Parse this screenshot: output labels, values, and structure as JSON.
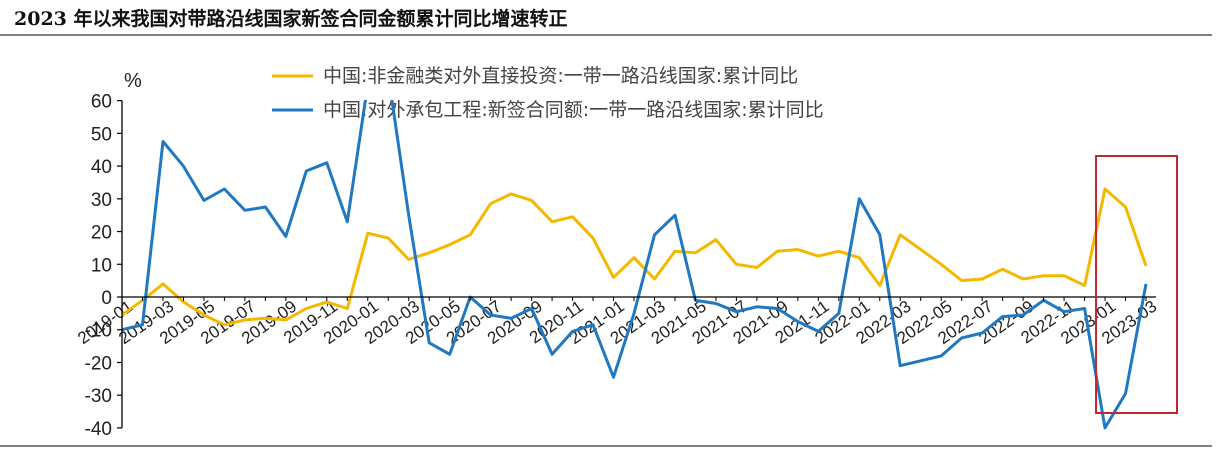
{
  "header": {
    "title": "2023 年以来我国对带路沿线国家新签合同金额累计同比增速转正"
  },
  "colors": {
    "series1": "#F5B800",
    "series2": "#1F78C1",
    "highlight": "#C0282D",
    "axis": "#000000"
  },
  "chart_data": {
    "type": "line",
    "title": "2023 年以来我国对带路沿线国家新签合同金额累计同比增速转正",
    "ylabel": "%",
    "ylim": [
      -40,
      60
    ],
    "yticks": [
      60,
      50,
      40,
      30,
      20,
      10,
      0,
      -10,
      -20,
      -30,
      -40
    ],
    "grid": false,
    "legend_position": "top",
    "x": [
      "2019-01",
      "2019-02",
      "2019-03",
      "2019-04",
      "2019-05",
      "2019-06",
      "2019-07",
      "2019-08",
      "2019-09",
      "2019-10",
      "2019-11",
      "2019-12",
      "2020-01",
      "2020-02",
      "2020-03",
      "2020-04",
      "2020-05",
      "2020-06",
      "2020-07",
      "2020-08",
      "2020-09",
      "2020-10",
      "2020-11",
      "2020-12",
      "2021-01",
      "2021-02",
      "2021-03",
      "2021-04",
      "2021-05",
      "2021-06",
      "2021-07",
      "2021-08",
      "2021-09",
      "2021-10",
      "2021-11",
      "2021-12",
      "2022-01",
      "2022-02",
      "2022-03",
      "2022-04",
      "2022-05",
      "2022-06",
      "2022-07",
      "2022-08",
      "2022-09",
      "2022-10",
      "2022-11",
      "2022-12",
      "2023-01",
      "2023-02",
      "2023-03"
    ],
    "xtick_labels": [
      "2019-01",
      "2019-03",
      "2019-05",
      "2019-07",
      "2019-09",
      "2019-11",
      "2020-01",
      "2020-03",
      "2020-05",
      "2020-07",
      "2020-09",
      "2020-11",
      "2021-01",
      "2021-03",
      "2021-05",
      "2021-07",
      "2021-09",
      "2021-11",
      "2022-01",
      "2022-03",
      "2022-05",
      "2022-07",
      "2022-09",
      "2022-11",
      "2023-01",
      "2023-03"
    ],
    "series": [
      {
        "name": "中国:非金融类对外直接投资:一带一路沿线国家:累计同比",
        "values": [
          -5.5,
          -1,
          4,
          -1.5,
          -5.5,
          -8.5,
          -7,
          -6.5,
          -7,
          -3.5,
          -1.5,
          -3.5,
          19.5,
          18,
          11.5,
          13.5,
          16,
          19,
          28.5,
          31.5,
          29.5,
          23,
          24.5,
          18,
          6,
          12,
          5.5,
          14,
          13.5,
          17.5,
          10,
          9,
          14,
          14.5,
          12.5,
          14,
          12,
          3.5,
          19,
          14.5,
          10,
          5,
          5.5,
          8.5,
          5.5,
          6.5,
          6.5,
          3.5,
          33,
          27.5,
          9.5
        ]
      },
      {
        "name": "中国:对外承包工程:新签合同额:一带一路沿线国家:累计同比",
        "values": [
          -10,
          -8.5,
          47.5,
          40,
          29.5,
          33,
          26.5,
          27.5,
          18.5,
          38.5,
          41,
          23,
          65,
          68,
          25,
          -14,
          -17.5,
          0,
          -5.5,
          -6.5,
          -3.5,
          -17.5,
          -10.5,
          -8.5,
          -24.5,
          -5,
          19,
          25,
          -1,
          -2,
          -4.5,
          -3,
          -3.5,
          -7.5,
          -10.5,
          -5,
          30,
          19,
          -21,
          -19.5,
          -18,
          -12.5,
          -11,
          -6,
          -5.5,
          -1,
          -4.5,
          -3.5,
          -40,
          -29.5,
          4
        ]
      }
    ],
    "highlight_range": [
      "2023-01",
      "2023-03"
    ]
  }
}
